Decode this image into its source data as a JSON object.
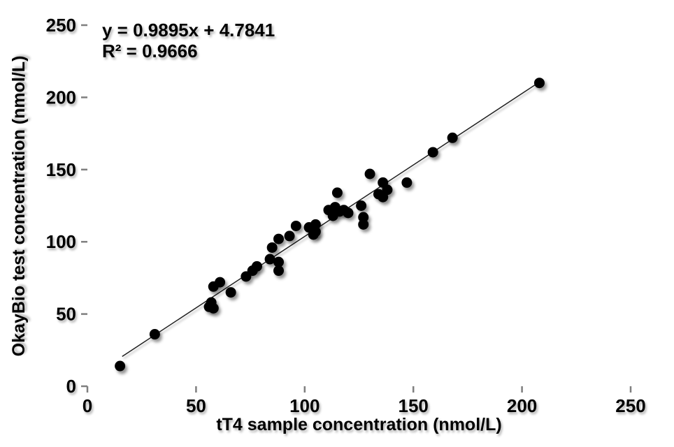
{
  "chart_data": {
    "type": "scatter",
    "title": "",
    "xlabel": "tT4 sample concentration (nmol/L)",
    "ylabel": "OkayBio test concentration (nmol/L)",
    "xlim": [
      0,
      250
    ],
    "ylim": [
      0,
      250
    ],
    "xticks": [
      0,
      50,
      100,
      150,
      200,
      250
    ],
    "yticks": [
      0,
      50,
      100,
      150,
      200,
      250
    ],
    "grid": false,
    "legend": "none",
    "annotation": {
      "equation": "y = 0.9895x + 4.7841",
      "r_squared": "R² = 0.9666"
    },
    "trendline": {
      "slope": 0.9895,
      "intercept": 4.7841,
      "x_start": 16,
      "x_end": 208
    },
    "points": [
      [
        15,
        14
      ],
      [
        31,
        36
      ],
      [
        56,
        55
      ],
      [
        57,
        58
      ],
      [
        58,
        54
      ],
      [
        58,
        69
      ],
      [
        61,
        72
      ],
      [
        66,
        65
      ],
      [
        73,
        76
      ],
      [
        76,
        80
      ],
      [
        78,
        83
      ],
      [
        84,
        88
      ],
      [
        85,
        96
      ],
      [
        88,
        80
      ],
      [
        88,
        86
      ],
      [
        88,
        102
      ],
      [
        93,
        104
      ],
      [
        96,
        111
      ],
      [
        102,
        110
      ],
      [
        104,
        105
      ],
      [
        105,
        107
      ],
      [
        105,
        112
      ],
      [
        111,
        122
      ],
      [
        113,
        118
      ],
      [
        114,
        124
      ],
      [
        115,
        134
      ],
      [
        116,
        121
      ],
      [
        118,
        122
      ],
      [
        120,
        120
      ],
      [
        126,
        125
      ],
      [
        127,
        117
      ],
      [
        127,
        112
      ],
      [
        130,
        147
      ],
      [
        134,
        133
      ],
      [
        136,
        131
      ],
      [
        136,
        141
      ],
      [
        138,
        136
      ],
      [
        147,
        141
      ],
      [
        159,
        162
      ],
      [
        168,
        172
      ],
      [
        208,
        210
      ]
    ],
    "colors": {
      "marker": "#000000",
      "trendline": "#1a1a1a",
      "axis": "#7f7f7f",
      "text": "#000000",
      "background": "#ffffff"
    }
  }
}
